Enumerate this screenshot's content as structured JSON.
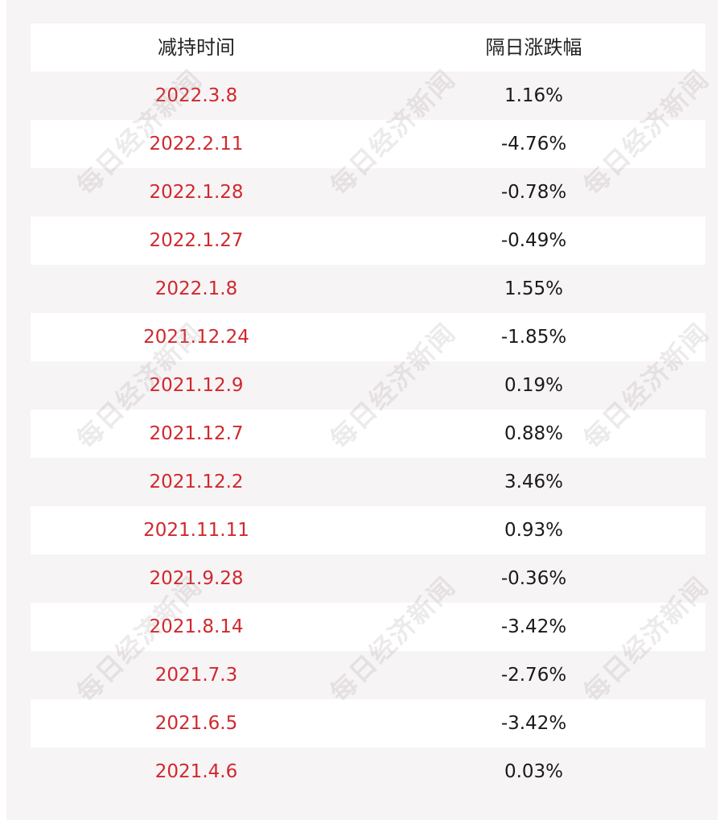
{
  "table": {
    "headers": {
      "date": "减持时间",
      "change": "隔日涨跌幅"
    },
    "rows": [
      {
        "date": "2022.3.8",
        "change": "1.16%"
      },
      {
        "date": "2022.2.11",
        "change": "-4.76%"
      },
      {
        "date": "2022.1.28",
        "change": "-0.78%"
      },
      {
        "date": "2022.1.27",
        "change": "-0.49%"
      },
      {
        "date": "2022.1.8",
        "change": "1.55%"
      },
      {
        "date": "2021.12.24",
        "change": "-1.85%"
      },
      {
        "date": "2021.12.9",
        "change": "0.19%"
      },
      {
        "date": "2021.12.7",
        "change": "0.88%"
      },
      {
        "date": "2021.12.2",
        "change": "3.46%"
      },
      {
        "date": "2021.11.11",
        "change": "0.93%"
      },
      {
        "date": "2021.9.28",
        "change": "-0.36%"
      },
      {
        "date": "2021.8.14",
        "change": "-3.42%"
      },
      {
        "date": "2021.7.3",
        "change": "-2.76%"
      },
      {
        "date": "2021.6.5",
        "change": "-3.42%"
      },
      {
        "date": "2021.4.6",
        "change": "0.03%"
      }
    ]
  },
  "watermark": {
    "text": "每日经济新闻"
  },
  "colors": {
    "date_text": "#d0282e",
    "value_text": "#1a1a1a",
    "stripe_background": "#f7f4f5",
    "row_background": "#ffffff"
  }
}
